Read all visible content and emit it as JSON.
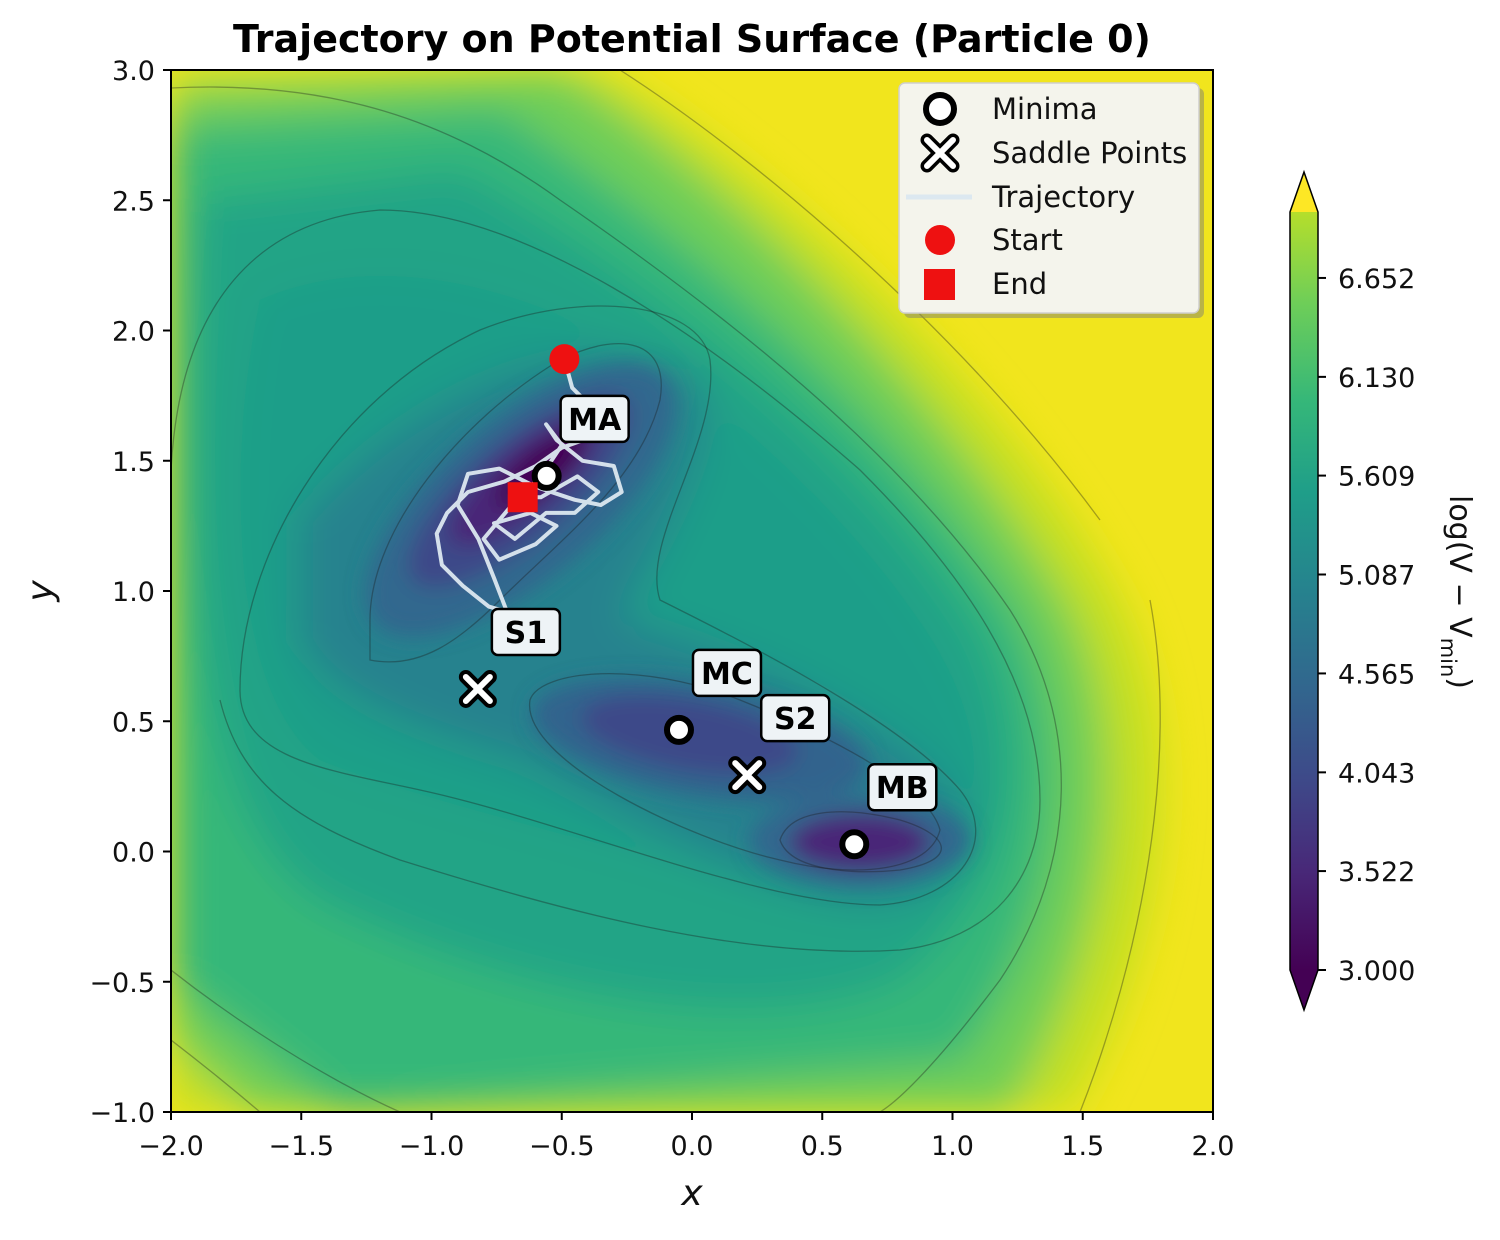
{
  "chart_data": {
    "type": "contour",
    "title": "Trajectory on Potential Surface (Particle 0)",
    "xlabel": "x",
    "ylabel": "y",
    "xlim": [
      -2.0,
      2.0
    ],
    "ylim": [
      -1.0,
      3.0
    ],
    "x_ticks": [
      "−2.0",
      "−1.5",
      "−1.0",
      "−0.5",
      "0.0",
      "0.5",
      "1.0",
      "1.5",
      "2.0"
    ],
    "y_ticks": [
      "−1.0",
      "−0.5",
      "0.0",
      "0.5",
      "1.0",
      "1.5",
      "2.0",
      "2.5",
      "3.0"
    ],
    "colorbar": {
      "label": "log(V − V",
      "label_sub": "min",
      "label_end": ")",
      "range": [
        3.0,
        7.0
      ],
      "tick_values": [
        3.0,
        3.522,
        4.043,
        4.565,
        5.087,
        5.609,
        6.13,
        6.652
      ],
      "tick_labels": [
        "3.000",
        "3.522",
        "4.043",
        "4.565",
        "5.087",
        "5.609",
        "6.130",
        "6.652"
      ],
      "colormap": "viridis",
      "extend": "both"
    },
    "legend": {
      "position": "top-right",
      "entries": [
        "Minima",
        "Saddle Points",
        "Trajectory",
        "Start",
        "End"
      ]
    },
    "minima": [
      {
        "label": "MA",
        "x": -0.558,
        "y": 1.442
      },
      {
        "label": "MC",
        "x": -0.05,
        "y": 0.467
      },
      {
        "label": "MB",
        "x": 0.623,
        "y": 0.028
      }
    ],
    "saddle_points": [
      {
        "label": "S1",
        "x": -0.822,
        "y": 0.624
      },
      {
        "label": "S2",
        "x": 0.212,
        "y": 0.293
      }
    ],
    "start": {
      "x": -0.49,
      "y": 1.89
    },
    "end": {
      "x": -0.65,
      "y": 1.36
    },
    "trajectory": [
      [
        -0.49,
        1.89
      ],
      [
        -0.46,
        1.78
      ],
      [
        -0.4,
        1.72
      ],
      [
        -0.36,
        1.6
      ],
      [
        -0.5,
        1.55
      ],
      [
        -0.6,
        1.48
      ],
      [
        -0.72,
        1.42
      ],
      [
        -0.86,
        1.38
      ],
      [
        -0.94,
        1.3
      ],
      [
        -0.98,
        1.22
      ],
      [
        -0.96,
        1.1
      ],
      [
        -0.88,
        1.02
      ],
      [
        -0.78,
        0.94
      ],
      [
        -0.71,
        0.92
      ],
      [
        -0.76,
        1.05
      ],
      [
        -0.82,
        1.2
      ],
      [
        -0.9,
        1.33
      ],
      [
        -0.86,
        1.45
      ],
      [
        -0.74,
        1.47
      ],
      [
        -0.6,
        1.4
      ],
      [
        -0.45,
        1.35
      ],
      [
        -0.35,
        1.33
      ],
      [
        -0.27,
        1.38
      ],
      [
        -0.3,
        1.48
      ],
      [
        -0.42,
        1.5
      ],
      [
        -0.52,
        1.58
      ],
      [
        -0.56,
        1.64
      ],
      [
        -0.5,
        1.56
      ],
      [
        -0.58,
        1.44
      ],
      [
        -0.7,
        1.32
      ],
      [
        -0.8,
        1.2
      ],
      [
        -0.74,
        1.12
      ],
      [
        -0.6,
        1.18
      ],
      [
        -0.52,
        1.25
      ],
      [
        -0.62,
        1.3
      ],
      [
        -0.76,
        1.26
      ],
      [
        -0.68,
        1.2
      ],
      [
        -0.56,
        1.3
      ],
      [
        -0.45,
        1.3
      ],
      [
        -0.36,
        1.38
      ],
      [
        -0.44,
        1.44
      ],
      [
        -0.58,
        1.36
      ],
      [
        -0.65,
        1.36
      ]
    ]
  }
}
